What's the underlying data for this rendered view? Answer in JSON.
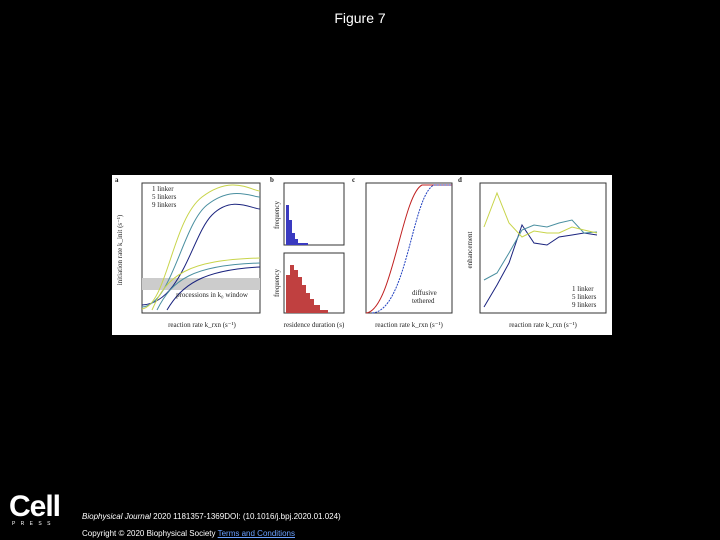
{
  "header": {
    "title": "Figure 7"
  },
  "figure": {
    "panels": [
      {
        "label": "a",
        "legend": [
          "1 linker",
          "5 linkers",
          "9 linkers"
        ],
        "x_label": "reaction rate k_rxn (s⁻¹)",
        "y_label": "initiation rate k_init (s⁻¹)",
        "note": "processions in k₀ window"
      },
      {
        "label": "b",
        "top_y_label": "frequency",
        "bottom_y_label": "frequency",
        "x_label": "residence duration (s)"
      },
      {
        "label": "c",
        "legend": [
          "diffusive",
          "tethered"
        ],
        "x_label": "reaction rate k_rxn (s⁻¹)"
      },
      {
        "label": "d",
        "legend": [
          "1 linker",
          "5 linkers",
          "9 linkers"
        ],
        "x_label": "reaction rate k_rxn (s⁻¹)",
        "y_label": "enhancement"
      }
    ]
  },
  "footer": {
    "logo": "Cell",
    "logo_sub": "P R E S S",
    "journal": "Biophysical Journal",
    "citation": " 2020 1181357-1369DOI: (10.1016/j.bpj.2020.01.024)",
    "copyright": "Copyright © 2020 Biophysical Society",
    "link": "Terms and Conditions"
  }
}
